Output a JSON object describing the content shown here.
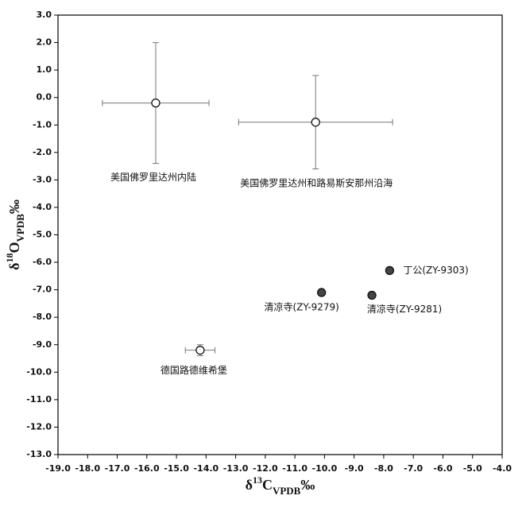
{
  "chart_data": {
    "type": "scatter",
    "xlabel_parts": [
      "δ",
      "13",
      "C",
      "VPDB",
      "‰"
    ],
    "ylabel_parts": [
      "δ",
      "18",
      "O",
      "VPDB",
      "‰"
    ],
    "series": [
      {
        "marker_fill": "#ffffff",
        "color": "#111111",
        "error_color": "#777777",
        "x": [
          -15.7,
          -10.3,
          -14.2
        ],
        "y": [
          -0.2,
          -0.9,
          -9.2
        ],
        "xerr": [
          1.8,
          2.6,
          0.5
        ],
        "yerr": [
          2.2,
          1.7,
          0.2
        ],
        "labels": [
          "美国佛罗里达州内陆",
          "美国佛罗里达州和路易斯安那州沿海",
          "德国路德维希堡"
        ]
      },
      {
        "marker_fill": "#444444",
        "color": "#111111",
        "x": [
          -10.1,
          -8.4,
          -7.8
        ],
        "y": [
          -7.1,
          -7.2,
          -6.3
        ],
        "labels": [
          "清凉寺(ZY-9279)",
          "清凉寺(ZY-9281)",
          "丁公(ZY-9303)"
        ]
      }
    ],
    "xlim": [
      -19,
      -4
    ],
    "ylim": [
      -13,
      3
    ],
    "xticks": [
      {
        "value": -19,
        "label": "-19.0"
      },
      {
        "value": -18,
        "label": "-18.0"
      },
      {
        "value": -17,
        "label": "-17.0"
      },
      {
        "value": -16,
        "label": "-16.0"
      },
      {
        "value": -15,
        "label": "-15.0"
      },
      {
        "value": -14,
        "label": "-14.0"
      },
      {
        "value": -13,
        "label": "-13.0"
      },
      {
        "value": -12,
        "label": "-12.0"
      },
      {
        "value": -11,
        "label": "-11.0"
      },
      {
        "value": -10,
        "label": "-10.0"
      },
      {
        "value": -9,
        "label": "-9.0"
      },
      {
        "value": -8,
        "label": "-8.0"
      },
      {
        "value": -7,
        "label": "-7.0"
      },
      {
        "value": -6,
        "label": "-6.0"
      },
      {
        "value": -5,
        "label": "-5.0"
      },
      {
        "value": -4,
        "label": "-4.0"
      }
    ],
    "yticks": [
      {
        "value": 3,
        "label": "3.0"
      },
      {
        "value": 2,
        "label": "2.0"
      },
      {
        "value": 1,
        "label": "1.0"
      },
      {
        "value": 0,
        "label": "0.0"
      },
      {
        "value": -1,
        "label": "-1.0"
      },
      {
        "value": -2,
        "label": "-2.0"
      },
      {
        "value": -3,
        "label": "-3.0"
      },
      {
        "value": -4,
        "label": "-4.0"
      },
      {
        "value": -5,
        "label": "-5.0"
      },
      {
        "value": -6,
        "label": "-6.0"
      },
      {
        "value": -7,
        "label": "-7.0"
      },
      {
        "value": -8,
        "label": "-8.0"
      },
      {
        "value": -9,
        "label": "-9.0"
      },
      {
        "value": -10,
        "label": "-10.0"
      },
      {
        "value": -11,
        "label": "-11.0"
      },
      {
        "value": -12,
        "label": "-12.0"
      },
      {
        "value": -13,
        "label": "-13.0"
      }
    ]
  }
}
